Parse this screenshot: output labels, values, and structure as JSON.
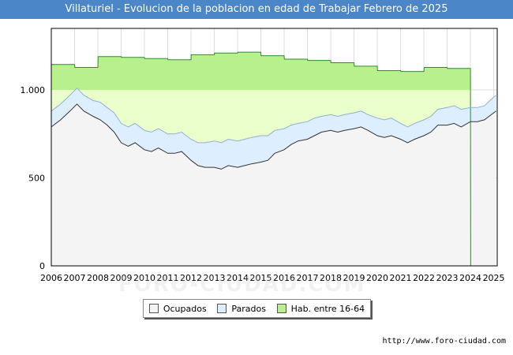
{
  "chart_data": {
    "type": "area",
    "title": "Villaturiel - Evolucion de la poblacion en edad de Trabajar Febrero de 2025",
    "xlabel": "",
    "ylabel": "",
    "x_range": [
      2006,
      2025.15
    ],
    "ylim": [
      0,
      1350
    ],
    "y_ticks": [
      0,
      500,
      1000
    ],
    "y_tick_labels": [
      "0",
      "500",
      "1.000"
    ],
    "x_ticks": [
      "2006",
      "2007",
      "2008",
      "2009",
      "2010",
      "2011",
      "2012",
      "2013",
      "2014",
      "2015",
      "2016",
      "2017",
      "2018",
      "2019",
      "2020",
      "2021",
      "2022",
      "2023",
      "2024",
      "2025"
    ],
    "grid": true,
    "legend_position": "bottom",
    "colors": {
      "ocupados_fill": "#f4f4f4",
      "ocupados_line": "#333333",
      "parados_fill": "#ddeeff",
      "parados_line": "#8fb2d6",
      "hab_fill": "#b7f08c",
      "hab_fill_light": "#eaffcc",
      "hab_line": "#2e8b2e"
    },
    "series": [
      {
        "name": "Ocupados",
        "x": [
          2006.0,
          2006.4,
          2006.8,
          2007.1,
          2007.4,
          2007.8,
          2008.1,
          2008.4,
          2008.7,
          2009.0,
          2009.3,
          2009.6,
          2010.0,
          2010.3,
          2010.6,
          2011.0,
          2011.3,
          2011.6,
          2012.0,
          2012.3,
          2012.6,
          2013.0,
          2013.3,
          2013.6,
          2014.0,
          2014.3,
          2014.6,
          2015.0,
          2015.3,
          2015.6,
          2016.0,
          2016.3,
          2016.6,
          2017.0,
          2017.3,
          2017.6,
          2018.0,
          2018.3,
          2018.6,
          2019.0,
          2019.3,
          2019.6,
          2020.0,
          2020.3,
          2020.6,
          2021.0,
          2021.3,
          2021.6,
          2022.0,
          2022.3,
          2022.6,
          2023.0,
          2023.3,
          2023.6,
          2024.0,
          2024.3,
          2024.6,
          2025.0,
          2025.1
        ],
        "values": [
          790,
          830,
          880,
          920,
          880,
          850,
          830,
          800,
          760,
          700,
          680,
          700,
          660,
          650,
          670,
          640,
          640,
          650,
          600,
          570,
          560,
          560,
          550,
          570,
          560,
          570,
          580,
          590,
          600,
          640,
          660,
          690,
          710,
          720,
          740,
          760,
          770,
          760,
          770,
          780,
          790,
          770,
          740,
          730,
          740,
          720,
          700,
          720,
          740,
          760,
          800,
          800,
          810,
          790,
          820,
          820,
          830,
          870,
          880
        ]
      },
      {
        "name": "Parados",
        "x": [
          2006.0,
          2006.4,
          2006.8,
          2007.1,
          2007.4,
          2007.8,
          2008.1,
          2008.4,
          2008.7,
          2009.0,
          2009.3,
          2009.6,
          2010.0,
          2010.3,
          2010.6,
          2011.0,
          2011.3,
          2011.6,
          2012.0,
          2012.3,
          2012.6,
          2013.0,
          2013.3,
          2013.6,
          2014.0,
          2014.3,
          2014.6,
          2015.0,
          2015.3,
          2015.6,
          2016.0,
          2016.3,
          2016.6,
          2017.0,
          2017.3,
          2017.6,
          2018.0,
          2018.3,
          2018.6,
          2019.0,
          2019.3,
          2019.6,
          2020.0,
          2020.3,
          2020.6,
          2021.0,
          2021.3,
          2021.6,
          2022.0,
          2022.3,
          2022.6,
          2023.0,
          2023.3,
          2023.6,
          2024.0,
          2024.3,
          2024.6,
          2025.0,
          2025.1
        ],
        "values": [
          90,
          90,
          90,
          90,
          90,
          90,
          100,
          100,
          110,
          110,
          110,
          110,
          110,
          110,
          110,
          110,
          110,
          110,
          120,
          130,
          140,
          150,
          150,
          150,
          150,
          150,
          150,
          150,
          140,
          130,
          120,
          110,
          100,
          100,
          100,
          90,
          90,
          90,
          90,
          90,
          90,
          90,
          100,
          100,
          100,
          90,
          90,
          90,
          90,
          90,
          90,
          100,
          100,
          100,
          80,
          80,
          80,
          90,
          90
        ]
      },
      {
        "name": "Hab. entre 16-64",
        "x": [
          2006.0,
          2007.0,
          2007.01,
          2008.0,
          2008.01,
          2009.0,
          2009.01,
          2010.0,
          2010.01,
          2011.0,
          2011.01,
          2012.0,
          2012.01,
          2013.0,
          2013.01,
          2014.0,
          2014.01,
          2015.0,
          2015.01,
          2016.0,
          2016.01,
          2017.0,
          2017.01,
          2018.0,
          2018.01,
          2019.0,
          2019.01,
          2020.0,
          2020.01,
          2021.0,
          2021.01,
          2022.0,
          2022.01,
          2023.0,
          2023.01,
          2024.0,
          2024.01
        ],
        "values": [
          1145,
          1145,
          1128,
          1128,
          1190,
          1190,
          1185,
          1185,
          1178,
          1178,
          1172,
          1172,
          1200,
          1200,
          1210,
          1210,
          1215,
          1215,
          1195,
          1195,
          1175,
          1175,
          1168,
          1168,
          1155,
          1155,
          1135,
          1135,
          1110,
          1110,
          1105,
          1105,
          1128,
          1128,
          1122,
          1122,
          0
        ]
      }
    ]
  },
  "legend": {
    "ocupados": "Ocupados",
    "parados": "Parados",
    "hab": "Hab. entre 16-64"
  },
  "footer": {
    "url": "http://www.foro-ciudad.com",
    "watermark": "FORO-CIUDAD.COM"
  }
}
